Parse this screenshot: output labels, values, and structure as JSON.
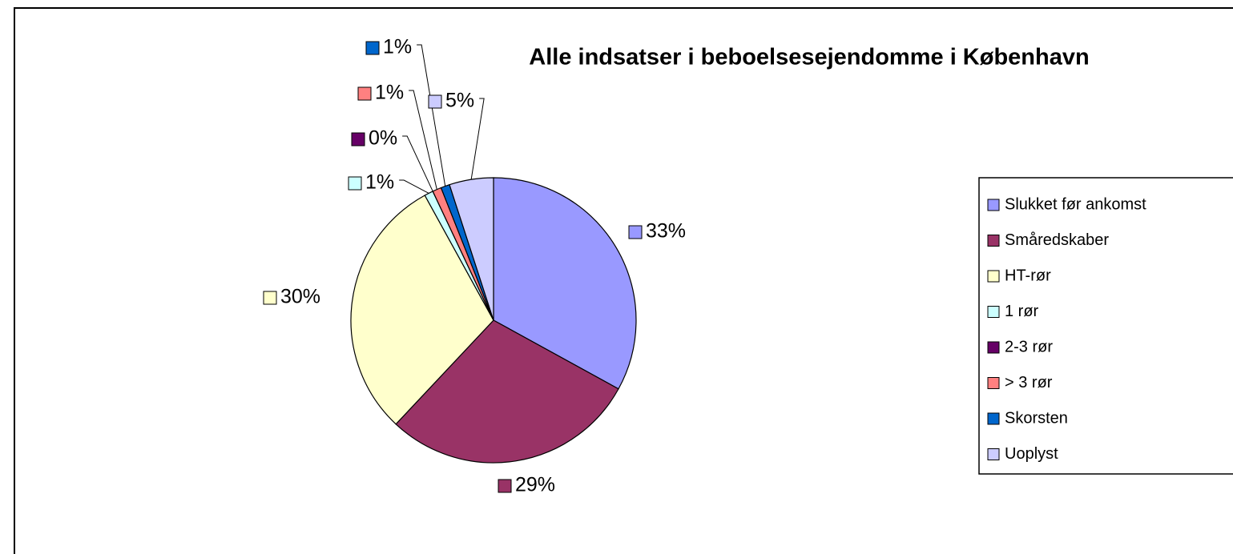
{
  "chart_data": {
    "type": "pie",
    "title": "Alle indsatser i beboelsesejendomme i København",
    "categories": [
      "Slukket før ankomst",
      "Småredskaber",
      "HT-rør",
      "1 rør",
      "2-3 rør",
      "> 3 rør",
      "Skorsten",
      "Uoplyst"
    ],
    "values": [
      33,
      29,
      30,
      1,
      0,
      1,
      1,
      5
    ],
    "value_labels": [
      "33%",
      "29%",
      "30%",
      "1%",
      "0%",
      "1%",
      "1%",
      "5%"
    ],
    "colors": [
      "#9999ff",
      "#993366",
      "#ffffcc",
      "#ccffff",
      "#660066",
      "#ff8080",
      "#0066cc",
      "#ccccff"
    ],
    "legend": "right"
  }
}
